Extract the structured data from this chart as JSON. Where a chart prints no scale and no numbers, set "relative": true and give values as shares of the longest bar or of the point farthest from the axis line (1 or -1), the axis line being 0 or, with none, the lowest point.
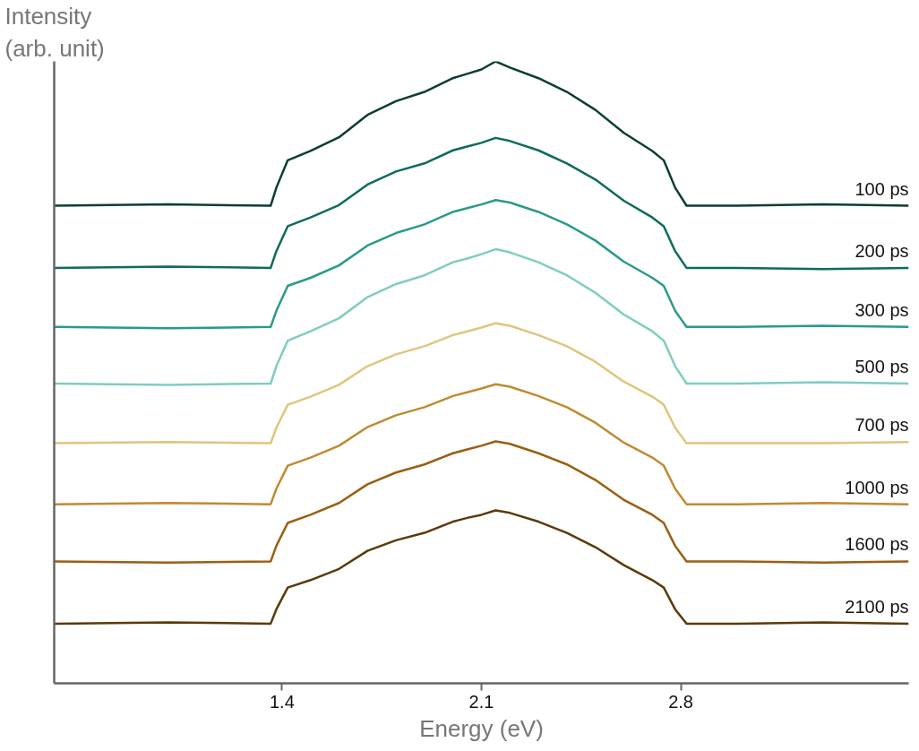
{
  "chart_data": {
    "type": "line",
    "relative": true,
    "xlabel": "Energy (eV)",
    "ylabel": "Intensity\n(arb. unit)",
    "xlim": [
      0.6,
      3.6
    ],
    "xticks": [
      1.4,
      2.1,
      2.8
    ],
    "tick_labels": "x",
    "grid": false,
    "x": [
      0.6,
      1.0,
      1.36,
      1.38,
      1.42,
      1.5,
      1.6,
      1.7,
      1.8,
      1.9,
      2.0,
      2.05,
      2.1,
      2.15,
      2.2,
      2.3,
      2.4,
      2.5,
      2.6,
      2.7,
      2.74,
      2.78,
      2.82,
      3.0,
      3.3,
      3.6
    ],
    "series": [
      {
        "name": "100 ps",
        "color": "#0b3d35",
        "values": [
          0.768,
          0.77,
          0.768,
          0.797,
          0.841,
          0.856,
          0.878,
          0.914,
          0.936,
          0.951,
          0.973,
          0.98,
          0.987,
          1.0,
          0.99,
          0.973,
          0.951,
          0.922,
          0.885,
          0.856,
          0.841,
          0.797,
          0.768,
          0.768,
          0.77,
          0.768
        ]
      },
      {
        "name": "200 ps",
        "color": "#0e6b5e",
        "values": [
          0.668,
          0.67,
          0.668,
          0.695,
          0.735,
          0.749,
          0.769,
          0.802,
          0.823,
          0.836,
          0.857,
          0.863,
          0.869,
          0.877,
          0.872,
          0.857,
          0.836,
          0.81,
          0.776,
          0.749,
          0.735,
          0.695,
          0.668,
          0.668,
          0.666,
          0.668
        ]
      },
      {
        "name": "300 ps",
        "color": "#2a9a8a",
        "values": [
          0.573,
          0.571,
          0.573,
          0.599,
          0.639,
          0.652,
          0.672,
          0.704,
          0.724,
          0.738,
          0.758,
          0.764,
          0.77,
          0.777,
          0.773,
          0.758,
          0.738,
          0.712,
          0.678,
          0.652,
          0.639,
          0.599,
          0.573,
          0.573,
          0.575,
          0.573
        ]
      },
      {
        "name": "500 ps",
        "color": "#7fcdc0",
        "values": [
          0.482,
          0.48,
          0.482,
          0.51,
          0.551,
          0.566,
          0.587,
          0.621,
          0.642,
          0.656,
          0.677,
          0.683,
          0.69,
          0.698,
          0.693,
          0.677,
          0.656,
          0.628,
          0.593,
          0.566,
          0.551,
          0.51,
          0.482,
          0.482,
          0.484,
          0.482
        ]
      },
      {
        "name": "700 ps",
        "color": "#dfc57c",
        "values": [
          0.386,
          0.388,
          0.386,
          0.411,
          0.448,
          0.461,
          0.48,
          0.51,
          0.529,
          0.542,
          0.56,
          0.566,
          0.572,
          0.579,
          0.575,
          0.56,
          0.542,
          0.517,
          0.485,
          0.461,
          0.448,
          0.411,
          0.386,
          0.386,
          0.386,
          0.388
        ]
      },
      {
        "name": "1000 ps",
        "color": "#c08a32",
        "values": [
          0.288,
          0.29,
          0.288,
          0.313,
          0.35,
          0.363,
          0.382,
          0.412,
          0.431,
          0.444,
          0.462,
          0.468,
          0.474,
          0.481,
          0.477,
          0.462,
          0.444,
          0.419,
          0.387,
          0.363,
          0.35,
          0.313,
          0.288,
          0.288,
          0.29,
          0.288
        ]
      },
      {
        "name": "1600 ps",
        "color": "#9a5f12",
        "values": [
          0.196,
          0.194,
          0.196,
          0.221,
          0.258,
          0.271,
          0.29,
          0.32,
          0.339,
          0.352,
          0.37,
          0.376,
          0.382,
          0.389,
          0.385,
          0.37,
          0.352,
          0.327,
          0.295,
          0.271,
          0.258,
          0.221,
          0.196,
          0.196,
          0.194,
          0.196
        ]
      },
      {
        "name": "2100 ps",
        "color": "#5a3a08",
        "values": [
          0.096,
          0.098,
          0.096,
          0.119,
          0.154,
          0.166,
          0.184,
          0.213,
          0.23,
          0.242,
          0.26,
          0.266,
          0.271,
          0.278,
          0.274,
          0.26,
          0.242,
          0.219,
          0.19,
          0.166,
          0.154,
          0.119,
          0.096,
          0.096,
          0.098,
          0.096
        ]
      }
    ]
  }
}
